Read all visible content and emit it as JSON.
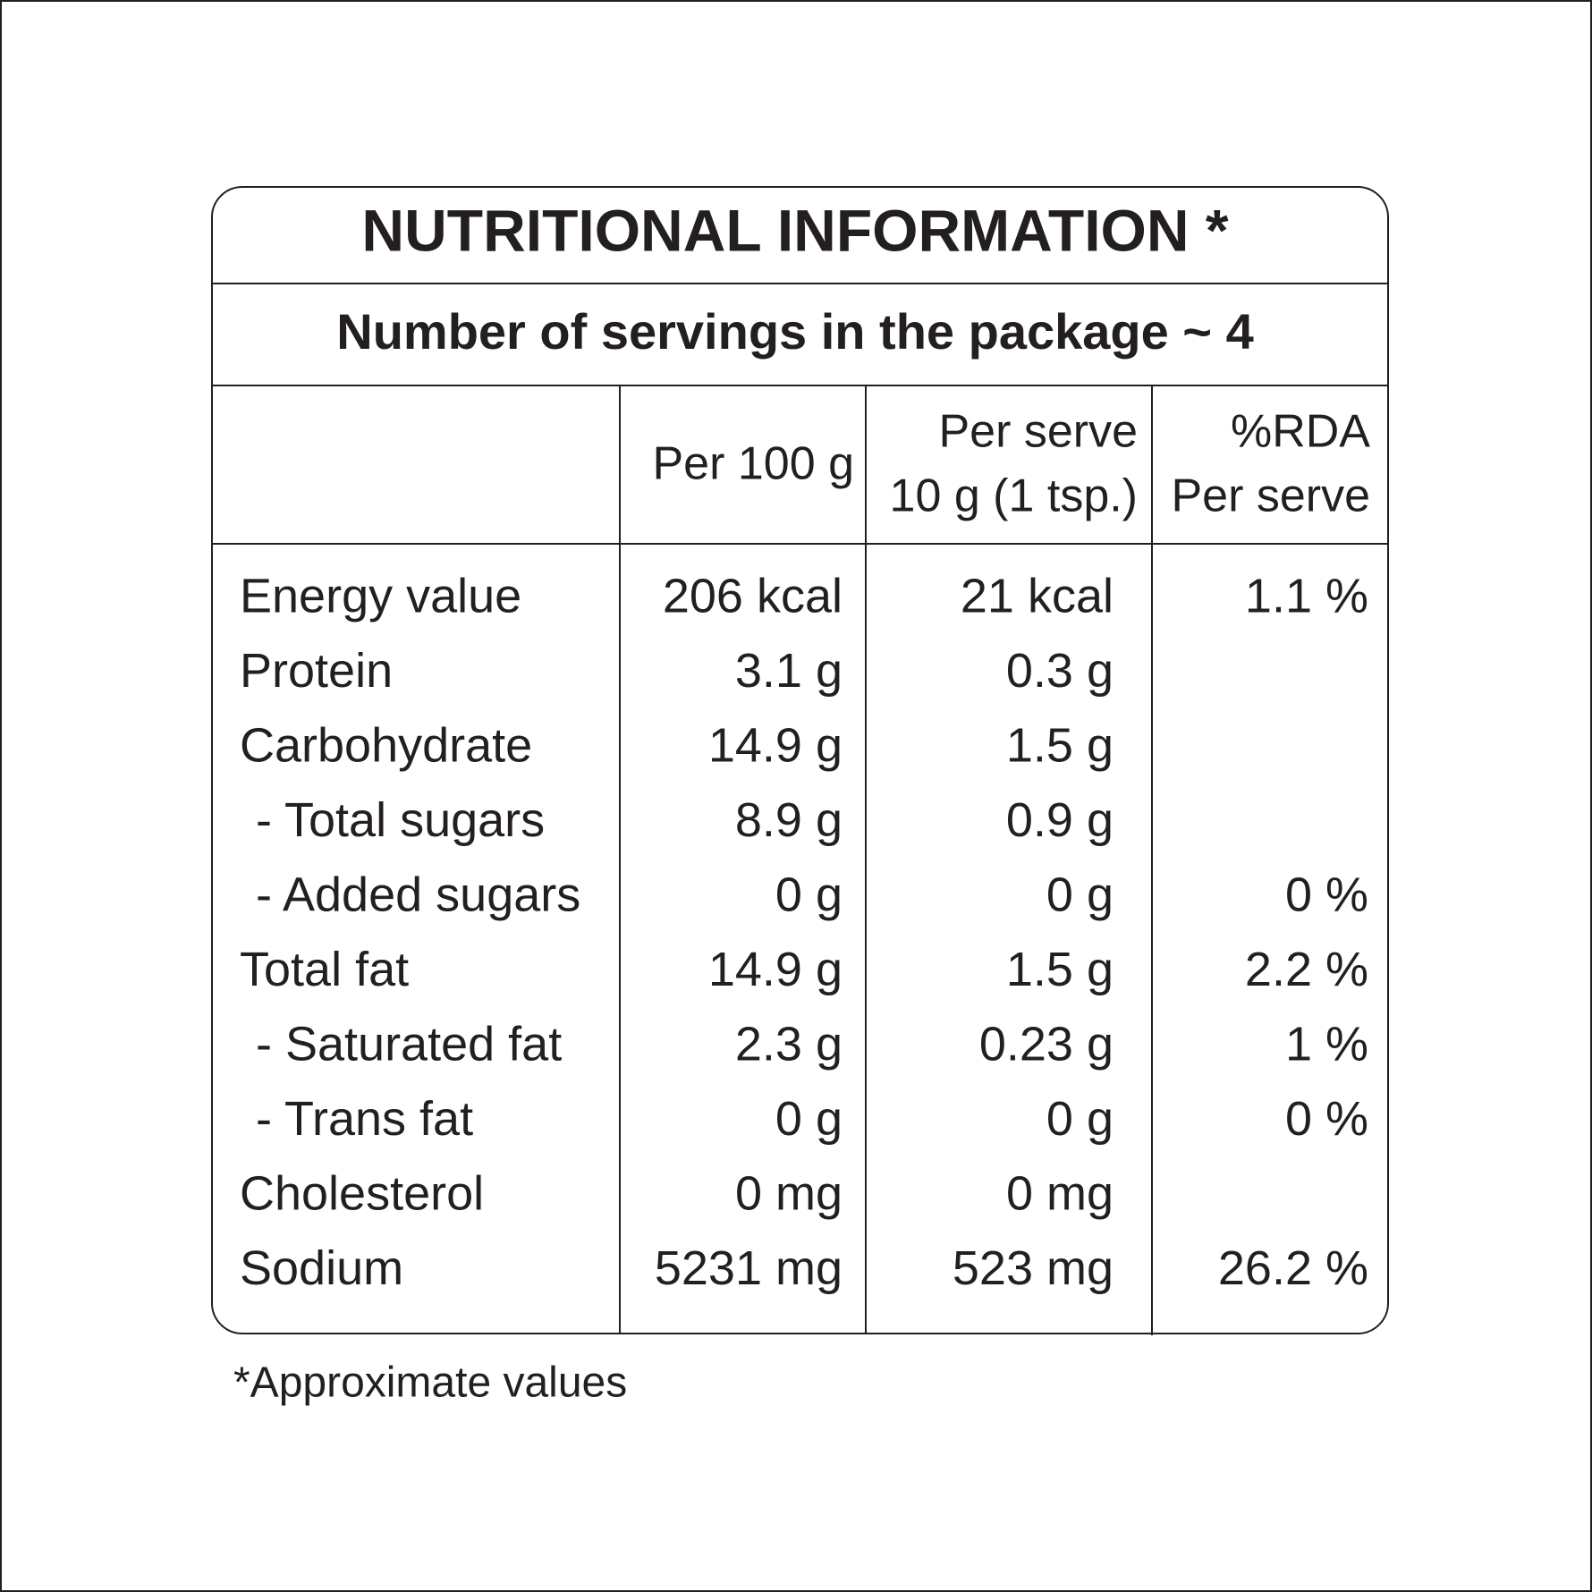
{
  "header": {
    "title": "NUTRITIONAL INFORMATION *",
    "servings": "Number of servings in the package ~ 4"
  },
  "table": {
    "columns": [
      [
        "Per 100 g"
      ],
      [
        "Per serve",
        "10 g (1 tsp.)"
      ],
      [
        "%RDA",
        "Per serve"
      ]
    ],
    "rows": [
      {
        "label": "Energy value",
        "per_100g": "206 kcal",
        "per_serve": "21 kcal",
        "rda": "1.1 %"
      },
      {
        "label": "Protein",
        "per_100g": "3.1 g",
        "per_serve": "0.3 g"
      },
      {
        "label": "Carbohydrate",
        "per_100g": "14.9 g",
        "per_serve": "1.5 g"
      },
      {
        "label": "- Total sugars",
        "per_100g": "8.9 g",
        "per_serve": "0.9 g"
      },
      {
        "label": "- Added sugars",
        "per_100g": "0 g",
        "per_serve": "0 g",
        "rda": "0 %"
      },
      {
        "label": "Total fat",
        "per_100g": "14.9 g",
        "per_serve": "1.5 g",
        "rda": "2.2 %"
      },
      {
        "label": "- Saturated fat",
        "per_100g": "2.3 g",
        "per_serve": "0.23 g",
        "rda": "1 %"
      },
      {
        "label": "- Trans fat",
        "per_100g": "0 g",
        "per_serve": "0 g",
        "rda": "0 %"
      },
      {
        "label": "Cholesterol",
        "per_100g": "0 mg",
        "per_serve": "0 mg"
      },
      {
        "label": "Sodium",
        "per_100g": "5231 mg",
        "per_serve": "523 mg",
        "rda": "26.2 %"
      }
    ]
  },
  "footnote": "*Approximate values"
}
